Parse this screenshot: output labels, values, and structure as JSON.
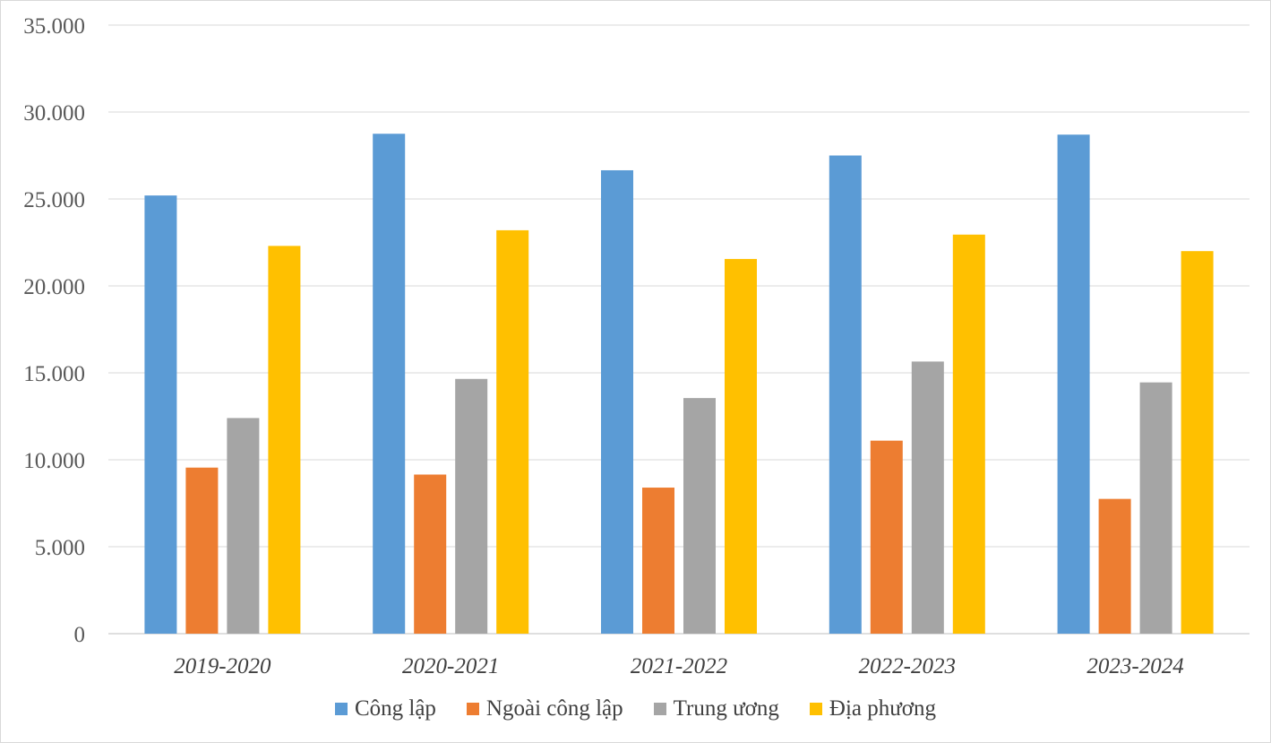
{
  "chart_data": {
    "type": "bar",
    "title": "",
    "xlabel": "",
    "ylabel": "",
    "categories": [
      "2019-2020",
      "2020-2021",
      "2021-2022",
      "2022-2023",
      "2023-2024"
    ],
    "series": [
      {
        "name": "Công lập",
        "color": "#5b9bd5",
        "values": [
          25200,
          28750,
          26650,
          27500,
          28700
        ]
      },
      {
        "name": "Ngoài công lập",
        "color": "#ed7d31",
        "values": [
          9550,
          9150,
          8400,
          11100,
          7750
        ]
      },
      {
        "name": "Trung ương",
        "color": "#a5a5a5",
        "values": [
          12400,
          14650,
          13550,
          15650,
          14450
        ]
      },
      {
        "name": "Địa phương",
        "color": "#ffc000",
        "values": [
          22300,
          23200,
          21550,
          22950,
          22000
        ]
      }
    ],
    "ylim": [
      0,
      35000
    ],
    "yticks": [
      "0",
      "5.000",
      "10.000",
      "15.000",
      "20.000",
      "25.000",
      "30.000",
      "35.000"
    ],
    "grid": true,
    "legend_position": "bottom"
  }
}
